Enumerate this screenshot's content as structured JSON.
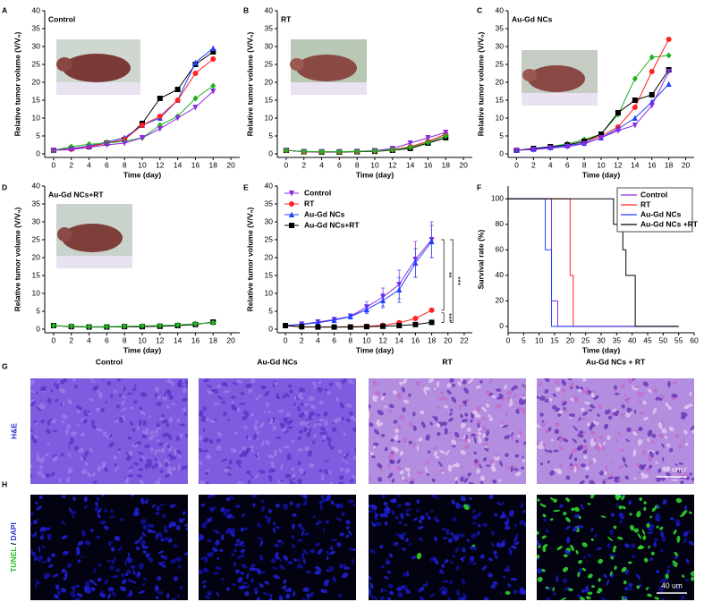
{
  "panel_labels": [
    "A",
    "B",
    "C",
    "D",
    "E",
    "F",
    "G",
    "H"
  ],
  "chart_data": [
    {
      "type": "line",
      "title": "Control",
      "x_label": "Time (day)",
      "y_label": "Relative tumor volume (V/V₀)",
      "x": [
        0,
        2,
        4,
        6,
        8,
        10,
        12,
        14,
        16,
        18
      ],
      "xlim": [
        -1,
        21
      ],
      "xticks": [
        0,
        2,
        4,
        6,
        8,
        10,
        12,
        14,
        16,
        18,
        20
      ],
      "ylim": [
        -1,
        40
      ],
      "yticks": [
        0,
        5,
        10,
        15,
        20,
        25,
        30,
        35,
        40
      ],
      "series": [
        {
          "color": "#000000",
          "marker": "square",
          "values": [
            1,
            1.5,
            2,
            3,
            4,
            8.5,
            15.5,
            18,
            25,
            28.5
          ]
        },
        {
          "color": "#1f3fff",
          "marker": "triangle",
          "values": [
            1,
            1.5,
            2.2,
            3.3,
            4.5,
            8,
            10,
            15,
            25.5,
            29.5
          ]
        },
        {
          "color": "#ff2020",
          "marker": "circle",
          "values": [
            1,
            1.3,
            2,
            3,
            4,
            8,
            10.5,
            15,
            22.5,
            26.5
          ]
        },
        {
          "color": "#20b020",
          "marker": "diamond",
          "values": [
            1,
            2,
            2.7,
            3,
            3.5,
            4.5,
            8,
            10.5,
            15.5,
            19
          ]
        },
        {
          "color": "#8a2be2",
          "marker": "triangle-down",
          "values": [
            1,
            1.2,
            1.8,
            2.5,
            3,
            4.5,
            7,
            10,
            13,
            17.5
          ]
        }
      ]
    },
    {
      "type": "line",
      "title": "RT",
      "x_label": "Time (day)",
      "y_label": "Relative tumor volume (V/V₀)",
      "x": [
        0,
        2,
        4,
        6,
        8,
        10,
        12,
        14,
        16,
        18
      ],
      "xlim": [
        -1,
        21
      ],
      "xticks": [
        0,
        2,
        4,
        6,
        8,
        10,
        12,
        14,
        16,
        18,
        20
      ],
      "ylim": [
        -1,
        40
      ],
      "yticks": [
        0,
        5,
        10,
        15,
        20,
        25,
        30,
        35,
        40
      ],
      "series": [
        {
          "color": "#000000",
          "marker": "square",
          "values": [
            1,
            0.6,
            0.5,
            0.5,
            0.6,
            0.7,
            1,
            1.5,
            3,
            4.5
          ]
        },
        {
          "color": "#ff2020",
          "marker": "circle",
          "values": [
            1,
            0.6,
            0.6,
            0.6,
            0.7,
            0.8,
            1.2,
            2,
            3.5,
            5.5
          ]
        },
        {
          "color": "#8a2be2",
          "marker": "triangle-down",
          "values": [
            1,
            0.6,
            0.6,
            0.6,
            0.7,
            0.9,
            1.5,
            3,
            4.5,
            6
          ]
        },
        {
          "color": "#20b020",
          "marker": "diamond",
          "values": [
            1,
            0.7,
            0.6,
            0.6,
            0.7,
            0.8,
            1.1,
            1.8,
            3.2,
            5
          ]
        }
      ]
    },
    {
      "type": "line",
      "title": "Au-Gd NCs",
      "x_label": "Time (day)",
      "y_label": "Relative tumor volume (V/V₀)",
      "x": [
        0,
        2,
        4,
        6,
        8,
        10,
        12,
        14,
        16,
        18
      ],
      "xlim": [
        -1,
        21
      ],
      "xticks": [
        0,
        2,
        4,
        6,
        8,
        10,
        12,
        14,
        16,
        18,
        20
      ],
      "ylim": [
        -1,
        40
      ],
      "yticks": [
        0,
        5,
        10,
        15,
        20,
        25,
        30,
        35,
        40
      ],
      "series": [
        {
          "color": "#20b020",
          "marker": "diamond",
          "values": [
            1,
            1.5,
            2,
            2.8,
            4,
            5.5,
            11,
            21,
            27,
            27.5
          ]
        },
        {
          "color": "#ff2020",
          "marker": "circle",
          "values": [
            1,
            1.3,
            1.8,
            2.5,
            3.5,
            5,
            7.5,
            13,
            23,
            32
          ]
        },
        {
          "color": "#000000",
          "marker": "square",
          "values": [
            1,
            1.5,
            2,
            2.5,
            3.5,
            5.5,
            11.5,
            15,
            16.5,
            23.5
          ]
        },
        {
          "color": "#1f3fff",
          "marker": "triangle",
          "values": [
            1,
            1.3,
            1.8,
            2.3,
            3,
            4.5,
            7,
            10,
            14.5,
            19.5
          ]
        },
        {
          "color": "#8a2be2",
          "marker": "triangle-down",
          "values": [
            1,
            1.2,
            1.6,
            2,
            2.8,
            4.5,
            6.5,
            8,
            13.5,
            23
          ]
        }
      ]
    },
    {
      "type": "line",
      "title": "Au-Gd NCs+RT",
      "x_label": "Time (day)",
      "y_label": "Relative tumor volume (V/V₀)",
      "x": [
        0,
        2,
        4,
        6,
        8,
        10,
        12,
        14,
        16,
        18
      ],
      "xlim": [
        -1,
        21
      ],
      "xticks": [
        0,
        2,
        4,
        6,
        8,
        10,
        12,
        14,
        16,
        18,
        20
      ],
      "ylim": [
        -1,
        40
      ],
      "yticks": [
        0,
        5,
        10,
        15,
        20,
        25,
        30,
        35,
        40
      ],
      "series": [
        {
          "color": "#000000",
          "marker": "square",
          "values": [
            1,
            0.7,
            0.6,
            0.6,
            0.7,
            0.7,
            0.8,
            1,
            1.3,
            2
          ]
        },
        {
          "color": "#20b020",
          "marker": "diamond",
          "values": [
            1,
            0.8,
            0.7,
            0.7,
            0.8,
            0.9,
            1,
            1.2,
            1.5,
            1.8
          ]
        }
      ]
    },
    {
      "type": "line",
      "x_label": "Time (day)",
      "y_label": "Relative tumor volume (V/V₀)",
      "legend": "upper left",
      "x": [
        0,
        2,
        4,
        6,
        8,
        10,
        12,
        14,
        16,
        18
      ],
      "xlim": [
        -1,
        23
      ],
      "xticks": [
        0,
        2,
        4,
        6,
        8,
        10,
        12,
        14,
        16,
        18,
        20,
        22
      ],
      "ylim": [
        -1,
        40
      ],
      "yticks": [
        0,
        5,
        10,
        15,
        20,
        25,
        30,
        35,
        40
      ],
      "series": [
        {
          "name": "Control",
          "color": "#8a2be2",
          "marker": "triangle-down",
          "values": [
            1,
            1.4,
            2,
            2.7,
            3.6,
            6.2,
            9,
            12.5,
            19.5,
            25
          ],
          "errors": [
            0,
            0.2,
            0.3,
            0.5,
            0.7,
            1.5,
            2.5,
            4,
            5,
            5
          ]
        },
        {
          "name": "RT",
          "color": "#ff2020",
          "marker": "circle",
          "values": [
            1,
            0.6,
            0.6,
            0.6,
            0.7,
            0.8,
            1.1,
            1.8,
            3,
            5.3
          ]
        },
        {
          "name": "Au-Gd NCs",
          "color": "#1f3fff",
          "marker": "triangle",
          "values": [
            1,
            1.3,
            1.8,
            2.5,
            3.5,
            5.5,
            8,
            11,
            18.5,
            24.5
          ],
          "errors": [
            0,
            0.2,
            0.3,
            0.5,
            0.6,
            1.2,
            2,
            3.5,
            4,
            4.5
          ]
        },
        {
          "name": "Au-Gd NCs+RT",
          "color": "#000000",
          "marker": "square",
          "values": [
            1,
            0.7,
            0.6,
            0.6,
            0.6,
            0.7,
            0.8,
            1,
            1.3,
            1.9
          ]
        }
      ],
      "annotations": [
        "**",
        "***",
        "***"
      ]
    },
    {
      "type": "line",
      "x_label": "Time (day)",
      "y_label": "Survival rate (%)",
      "legend": "upper right",
      "xlim": [
        0,
        60
      ],
      "xticks": [
        0,
        5,
        10,
        15,
        20,
        25,
        30,
        35,
        40,
        45,
        50,
        55,
        60
      ],
      "ylim": [
        -5,
        110
      ],
      "yticks": [
        0,
        20,
        40,
        60,
        80,
        100
      ],
      "series": [
        {
          "name": "Control",
          "color": "#8a2be2",
          "x": [
            0,
            14,
            14,
            16,
            16,
            55
          ],
          "values": [
            100,
            100,
            20,
            20,
            0,
            0
          ]
        },
        {
          "name": "RT",
          "color": "#ff2020",
          "x": [
            0,
            20,
            20,
            21,
            21,
            55
          ],
          "values": [
            100,
            100,
            40,
            40,
            0,
            0
          ]
        },
        {
          "name": "Au-Gd NCs",
          "color": "#1f3fff",
          "x": [
            0,
            12,
            12,
            14,
            14,
            55
          ],
          "values": [
            100,
            100,
            60,
            60,
            0,
            0
          ]
        },
        {
          "name": "Au-Gd NCs +RT",
          "color": "#000000",
          "x": [
            0,
            34,
            34,
            37,
            37,
            38,
            38,
            41,
            41,
            55
          ],
          "values": [
            100,
            100,
            80,
            80,
            60,
            60,
            40,
            40,
            0,
            0
          ]
        }
      ]
    }
  ],
  "histology": {
    "columns": [
      "Control",
      "Au-Gd NCs",
      "RT",
      "Au-Gd NCs + RT"
    ],
    "rows": [
      {
        "label": "H&E"
      },
      {
        "label_parts": [
          "TUNEL",
          "/",
          "DAPI"
        ]
      }
    ],
    "scale_bar": "40 um"
  }
}
